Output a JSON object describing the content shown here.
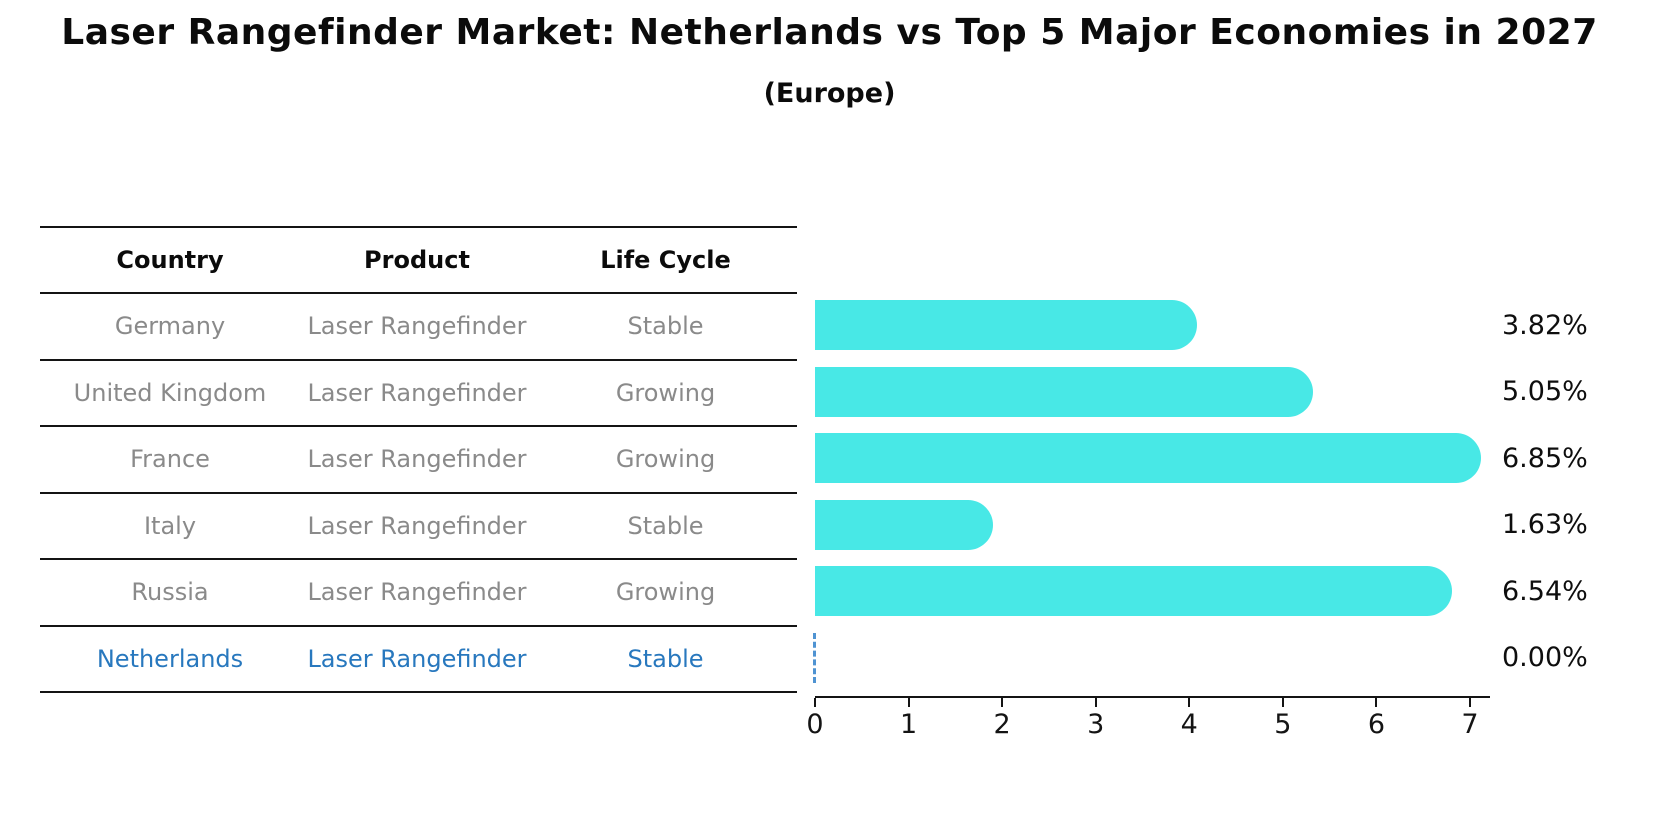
{
  "title": "Laser Rangefinder Market: Netherlands vs Top 5 Major Economies in 2027",
  "subtitle": "(Europe)",
  "table": {
    "headers": [
      "Country",
      "Product",
      "Life Cycle"
    ],
    "rows": [
      {
        "country": "Germany",
        "product": "Laser Rangefinder",
        "life_cycle": "Stable",
        "highlight": false
      },
      {
        "country": "United Kingdom",
        "product": "Laser Rangefinder",
        "life_cycle": "Growing",
        "highlight": false
      },
      {
        "country": "France",
        "product": "Laser Rangefinder",
        "life_cycle": "Growing",
        "highlight": false
      },
      {
        "country": "Italy",
        "product": "Laser Rangefinder",
        "life_cycle": "Stable",
        "highlight": false
      },
      {
        "country": "Russia",
        "product": "Laser Rangefinder",
        "life_cycle": "Growing",
        "highlight": false
      },
      {
        "country": "Netherlands",
        "product": "Laser Rangefinder",
        "life_cycle": "Stable",
        "highlight": true
      }
    ]
  },
  "chart_data": {
    "type": "bar",
    "orientation": "horizontal",
    "title": "Laser Rangefinder Market: Netherlands vs Top 5 Major Economies in 2027",
    "subtitle": "(Europe)",
    "categories": [
      "Germany",
      "United Kingdom",
      "France",
      "Italy",
      "Russia",
      "Netherlands"
    ],
    "values": [
      3.82,
      5.05,
      6.85,
      1.63,
      6.54,
      0.0
    ],
    "value_labels": [
      "3.82%",
      "5.05%",
      "6.85%",
      "1.63%",
      "6.54%",
      "0.00%"
    ],
    "xlabel": "",
    "ylabel": "",
    "xlim": [
      0,
      7.2
    ],
    "x_ticks": [
      0,
      1,
      2,
      3,
      4,
      5,
      6,
      7
    ],
    "grid": false,
    "legend": "none",
    "highlight_index": 5
  },
  "colors": {
    "bar": "#48e8e6",
    "highlight_text": "#2878be",
    "zero_marker": "#4f93d2",
    "table_text": "#8a8a8a",
    "line": "#141414"
  }
}
